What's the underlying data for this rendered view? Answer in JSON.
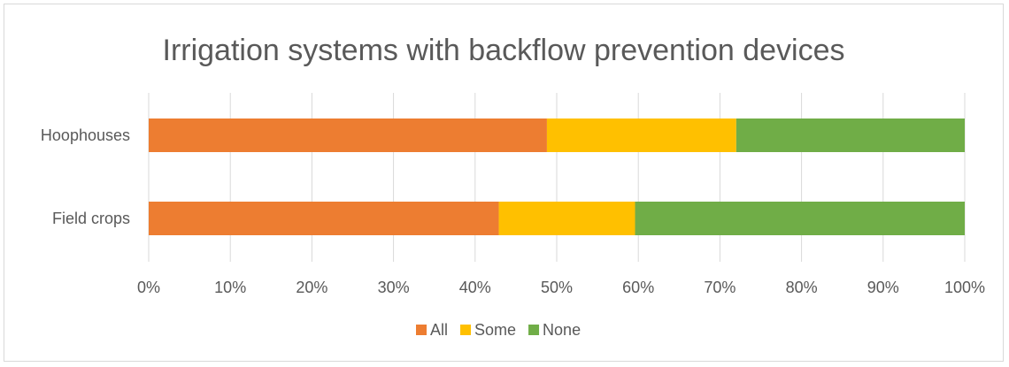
{
  "chart_data": {
    "type": "bar",
    "orientation": "horizontal",
    "stacked": true,
    "title": "Irrigation systems with backflow prevention devices",
    "categories": [
      "Hoophouses",
      "Field crops"
    ],
    "series": [
      {
        "name": "All",
        "color": "#ED7D31",
        "values": [
          48.8,
          42.9
        ]
      },
      {
        "name": "Some",
        "color": "#FFC000",
        "values": [
          23.2,
          16.7
        ]
      },
      {
        "name": "None",
        "color": "#70AD47",
        "values": [
          28.0,
          40.4
        ]
      }
    ],
    "xlim": [
      0,
      100
    ],
    "x_ticks": [
      "0%",
      "10%",
      "20%",
      "30%",
      "40%",
      "50%",
      "60%",
      "70%",
      "80%",
      "90%",
      "100%"
    ],
    "xlabel": "",
    "ylabel": "",
    "grid": "vertical",
    "legend": "bottom"
  }
}
